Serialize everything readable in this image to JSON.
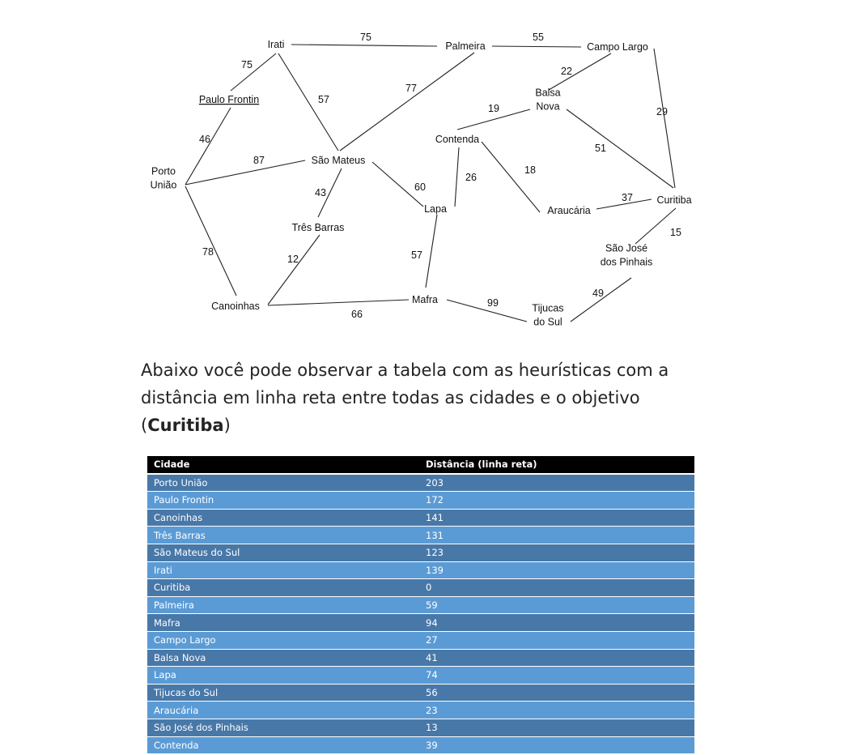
{
  "graph": {
    "nodes": [
      {
        "id": "irati",
        "lines": [
          "Irati"
        ]
      },
      {
        "id": "palmeira",
        "lines": [
          "Palmeira"
        ]
      },
      {
        "id": "campo_largo",
        "lines": [
          "Campo Largo"
        ]
      },
      {
        "id": "paulo_frontin",
        "lines": [
          "Paulo Frontin"
        ]
      },
      {
        "id": "balsa_nova",
        "lines": [
          "Balsa",
          "Nova"
        ]
      },
      {
        "id": "contenda",
        "lines": [
          "Contenda"
        ]
      },
      {
        "id": "porto_uniao",
        "lines": [
          "Porto",
          "União"
        ]
      },
      {
        "id": "sao_mateus",
        "lines": [
          "São Mateus"
        ]
      },
      {
        "id": "lapa",
        "lines": [
          "Lapa"
        ]
      },
      {
        "id": "araucaria",
        "lines": [
          "Araucária"
        ]
      },
      {
        "id": "curitiba",
        "lines": [
          "Curitiba"
        ]
      },
      {
        "id": "tres_barras",
        "lines": [
          "Três Barras"
        ]
      },
      {
        "id": "sao_jose",
        "lines": [
          "São José",
          "dos Pinhais"
        ]
      },
      {
        "id": "canoinhas",
        "lines": [
          "Canoinhas"
        ]
      },
      {
        "id": "mafra",
        "lines": [
          "Mafra"
        ]
      },
      {
        "id": "tijucas",
        "lines": [
          "Tijucas",
          "do Sul"
        ]
      }
    ],
    "edges": [
      {
        "from": "irati",
        "to": "palmeira",
        "weight": "75"
      },
      {
        "from": "palmeira",
        "to": "campo_largo",
        "weight": "55"
      },
      {
        "from": "irati",
        "to": "paulo_frontin",
        "weight": "75"
      },
      {
        "from": "irati",
        "to": "sao_mateus",
        "weight": "57"
      },
      {
        "from": "palmeira",
        "to": "sao_mateus",
        "weight": "77"
      },
      {
        "from": "campo_largo",
        "to": "balsa_nova",
        "weight": "22"
      },
      {
        "from": "campo_largo",
        "to": "curitiba",
        "weight": "29"
      },
      {
        "from": "balsa_nova",
        "to": "contenda",
        "weight": "19"
      },
      {
        "from": "balsa_nova",
        "to": "curitiba",
        "weight": "51"
      },
      {
        "from": "paulo_frontin",
        "to": "porto_uniao",
        "weight": "46"
      },
      {
        "from": "porto_uniao",
        "to": "sao_mateus",
        "weight": "87"
      },
      {
        "from": "porto_uniao",
        "to": "canoinhas",
        "weight": "78"
      },
      {
        "from": "sao_mateus",
        "to": "tres_barras",
        "weight": "43"
      },
      {
        "from": "sao_mateus",
        "to": "lapa",
        "weight": "60"
      },
      {
        "from": "contenda",
        "to": "lapa",
        "weight": "26"
      },
      {
        "from": "contenda",
        "to": "araucaria",
        "weight": "18"
      },
      {
        "from": "araucaria",
        "to": "curitiba",
        "weight": "37"
      },
      {
        "from": "curitiba",
        "to": "sao_jose",
        "weight": "15"
      },
      {
        "from": "tres_barras",
        "to": "canoinhas",
        "weight": "12"
      },
      {
        "from": "lapa",
        "to": "mafra",
        "weight": "57"
      },
      {
        "from": "canoinhas",
        "to": "mafra",
        "weight": "66"
      },
      {
        "from": "mafra",
        "to": "tijucas",
        "weight": "99"
      },
      {
        "from": "sao_jose",
        "to": "tijucas",
        "weight": "49"
      }
    ]
  },
  "paragraph": {
    "text_before": "Abaixo você pode observar a tabela com as heurísticas com a distância em linha reta entre todas as cidades e o objetivo (",
    "bold": "Curitiba",
    "text_after": ")"
  },
  "table": {
    "headers": [
      "Cidade",
      "Distância (linha reta)"
    ],
    "rows": [
      [
        "Porto União",
        "203"
      ],
      [
        "Paulo Frontin",
        "172"
      ],
      [
        "Canoinhas",
        "141"
      ],
      [
        "Três Barras",
        "131"
      ],
      [
        "São Mateus do Sul",
        "123"
      ],
      [
        "Irati",
        "139"
      ],
      [
        "Curitiba",
        "0"
      ],
      [
        "Palmeira",
        "59"
      ],
      [
        "Mafra",
        "94"
      ],
      [
        "Campo Largo",
        "27"
      ],
      [
        "Balsa Nova",
        "41"
      ],
      [
        "Lapa",
        "74"
      ],
      [
        "Tijucas do Sul",
        "56"
      ],
      [
        "Araucária",
        "23"
      ],
      [
        "São José dos Pinhais",
        "13"
      ],
      [
        "Contenda",
        "39"
      ]
    ],
    "colors": {
      "header": "#000000",
      "row_dark": "#4878a8",
      "row_light": "#5b9bd5"
    }
  }
}
